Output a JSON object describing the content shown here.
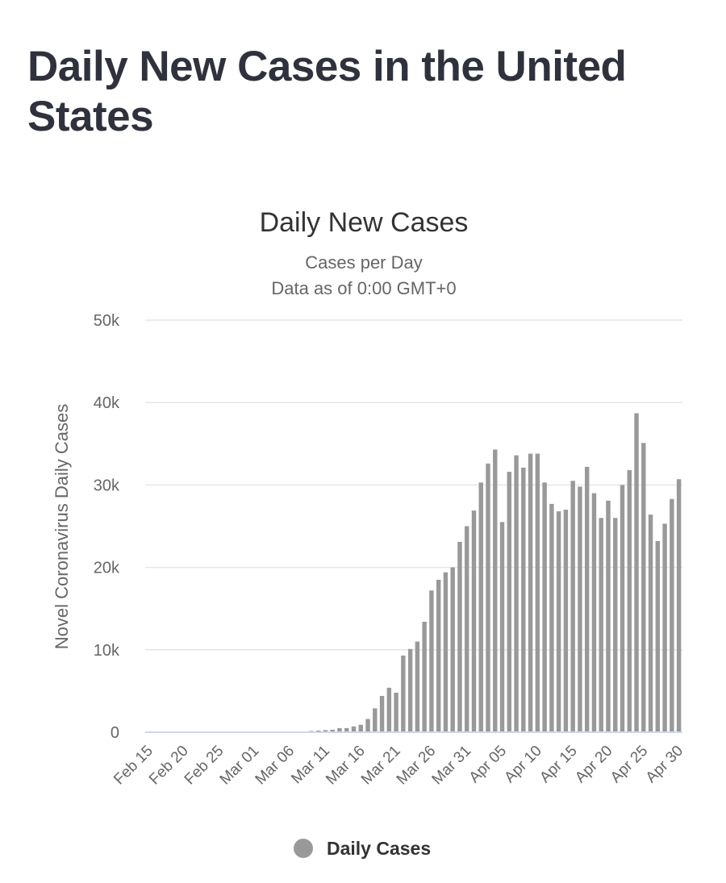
{
  "page": {
    "title": "Daily New Cases in the United States"
  },
  "chart_data": {
    "type": "bar",
    "title": "Daily New Cases",
    "subtitle_lines": [
      "Cases per Day",
      "Data as of 0:00 GMT+0"
    ],
    "xlabel": "",
    "ylabel": "Novel Coronavirus Daily Cases",
    "ylim": [
      0,
      50000
    ],
    "yticks": [
      0,
      10000,
      20000,
      30000,
      40000,
      50000
    ],
    "ytick_labels": [
      "0",
      "10k",
      "20k",
      "30k",
      "40k",
      "50k"
    ],
    "grid": true,
    "legend": {
      "position": "bottom-center",
      "entries": [
        {
          "name": "Daily Cases",
          "color": "#999999"
        }
      ]
    },
    "bar_color": "#999999",
    "xtick_labels": [
      "Feb 15",
      "Feb 20",
      "Feb 25",
      "Mar 01",
      "Mar 06",
      "Mar 11",
      "Mar 16",
      "Mar 21",
      "Mar 26",
      "Mar 31",
      "Apr 05",
      "Apr 10",
      "Apr 15",
      "Apr 20",
      "Apr 25",
      "Apr 30"
    ],
    "xtick_every": 5,
    "categories": [
      "Feb 15",
      "Feb 16",
      "Feb 17",
      "Feb 18",
      "Feb 19",
      "Feb 20",
      "Feb 21",
      "Feb 22",
      "Feb 23",
      "Feb 24",
      "Feb 25",
      "Feb 26",
      "Feb 27",
      "Feb 28",
      "Feb 29",
      "Mar 01",
      "Mar 02",
      "Mar 03",
      "Mar 04",
      "Mar 05",
      "Mar 06",
      "Mar 07",
      "Mar 08",
      "Mar 09",
      "Mar 10",
      "Mar 11",
      "Mar 12",
      "Mar 13",
      "Mar 14",
      "Mar 15",
      "Mar 16",
      "Mar 17",
      "Mar 18",
      "Mar 19",
      "Mar 20",
      "Mar 21",
      "Mar 22",
      "Mar 23",
      "Mar 24",
      "Mar 25",
      "Mar 26",
      "Mar 27",
      "Mar 28",
      "Mar 29",
      "Mar 30",
      "Mar 31",
      "Apr 01",
      "Apr 02",
      "Apr 03",
      "Apr 04",
      "Apr 05",
      "Apr 06",
      "Apr 07",
      "Apr 08",
      "Apr 09",
      "Apr 10",
      "Apr 11",
      "Apr 12",
      "Apr 13",
      "Apr 14",
      "Apr 15",
      "Apr 16",
      "Apr 17",
      "Apr 18",
      "Apr 19",
      "Apr 20",
      "Apr 21",
      "Apr 22",
      "Apr 23",
      "Apr 24",
      "Apr 25",
      "Apr 26",
      "Apr 27",
      "Apr 28",
      "Apr 29",
      "Apr 30"
    ],
    "series": [
      {
        "name": "Daily Cases",
        "values": [
          0,
          0,
          0,
          0,
          0,
          0,
          0,
          0,
          0,
          10,
          10,
          10,
          10,
          10,
          10,
          10,
          20,
          20,
          30,
          50,
          70,
          80,
          100,
          150,
          200,
          250,
          300,
          500,
          500,
          700,
          900,
          1600,
          2900,
          4400,
          5400,
          4800,
          9300,
          10100,
          11000,
          13400,
          17200,
          18500,
          19400,
          20000,
          23100,
          25000,
          26900,
          30300,
          32600,
          34300,
          25500,
          31600,
          33600,
          32100,
          33800,
          33800,
          30300,
          27700,
          26800,
          27000,
          30500,
          29800,
          32200,
          29000,
          26000,
          28100,
          26000,
          30000,
          31800,
          38700,
          35100,
          26400,
          23200,
          25300,
          28300,
          30700
        ]
      }
    ]
  }
}
